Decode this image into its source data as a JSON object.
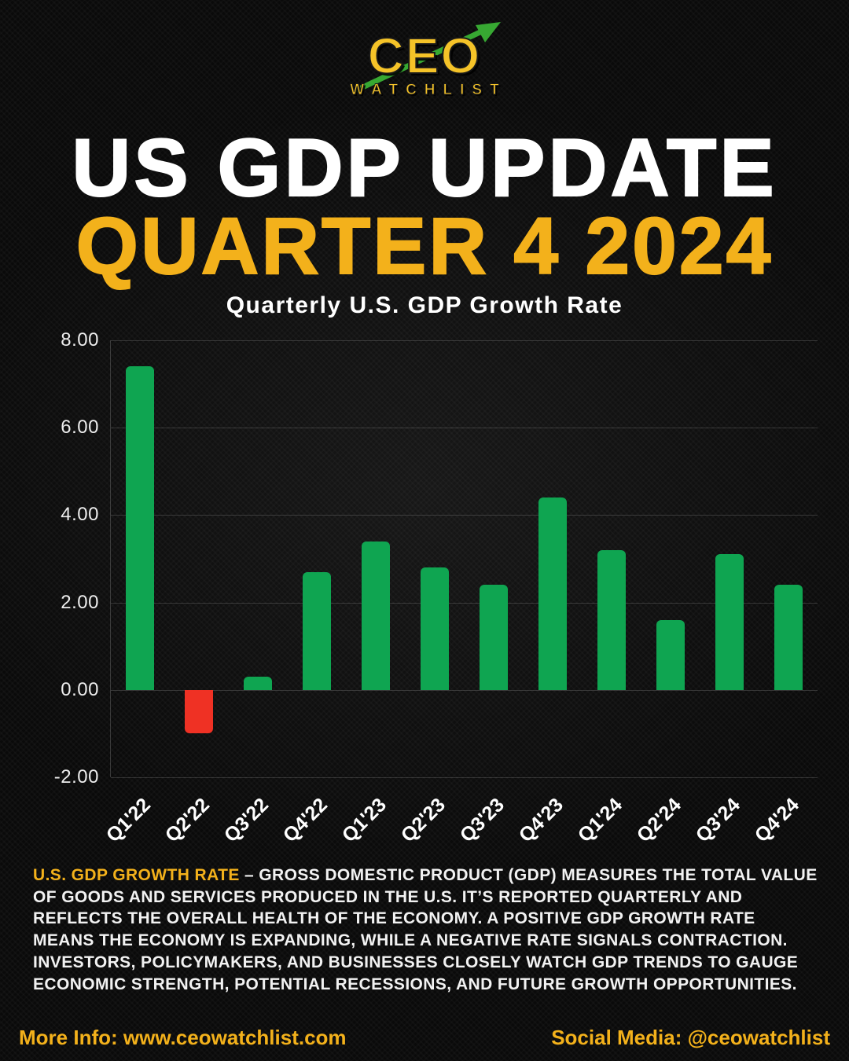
{
  "logo": {
    "name": "CEO",
    "subname": "WATCHLIST"
  },
  "title": {
    "line1": "US GDP UPDATE",
    "line2": "QUARTER 4 2024"
  },
  "chart_data": {
    "type": "bar",
    "title": "Quarterly U.S. GDP Growth Rate",
    "categories": [
      "Q1'22",
      "Q2'22",
      "Q3'22",
      "Q4'22",
      "Q1'23",
      "Q2'23",
      "Q3'23",
      "Q4'23",
      "Q1'24",
      "Q2'24",
      "Q3'24",
      "Q4'24"
    ],
    "values": [
      7.4,
      -1.0,
      0.3,
      2.7,
      3.4,
      2.8,
      2.4,
      4.4,
      3.2,
      1.6,
      3.1,
      2.4
    ],
    "xlabel": "",
    "ylabel": "",
    "ylim": [
      -2,
      8
    ],
    "yticks": [
      {
        "value": 8,
        "label": "8.00"
      },
      {
        "value": 6,
        "label": "6.00"
      },
      {
        "value": 4,
        "label": "4.00"
      },
      {
        "value": 2,
        "label": "2.00"
      },
      {
        "value": 0,
        "label": "0.00"
      },
      {
        "value": -2,
        "label": "-2.00"
      }
    ],
    "grid": true,
    "legend": false,
    "positive_color": "#0FA551",
    "negative_color": "#EF3124"
  },
  "description": {
    "lead": "U.S. GDP GROWTH RATE ",
    "body": "– GROSS DOMESTIC PRODUCT (GDP) MEASURES THE TOTAL VALUE OF GOODS AND SERVICES PRODUCED IN THE U.S. IT’S REPORTED QUARTERLY AND REFLECTS THE OVERALL HEALTH OF THE ECONOMY. A POSITIVE GDP GROWTH RATE MEANS THE ECONOMY IS EXPANDING, WHILE A NEGATIVE RATE SIGNALS CONTRACTION. INVESTORS, POLICYMAKERS, AND BUSINESSES CLOSELY WATCH GDP TRENDS TO GAUGE ECONOMIC STRENGTH, POTENTIAL RECESSIONS, AND FUTURE GROWTH OPPORTUNITIES."
  },
  "footer": {
    "left": "More Info: www.ceowatchlist.com",
    "right": "Social Media: @ceowatchlist"
  },
  "colors": {
    "gold": "#F3B11B",
    "white": "#FFFFFF",
    "background": "#0A0A0A",
    "bar_positive": "#0FA551",
    "bar_negative": "#EF3124"
  }
}
